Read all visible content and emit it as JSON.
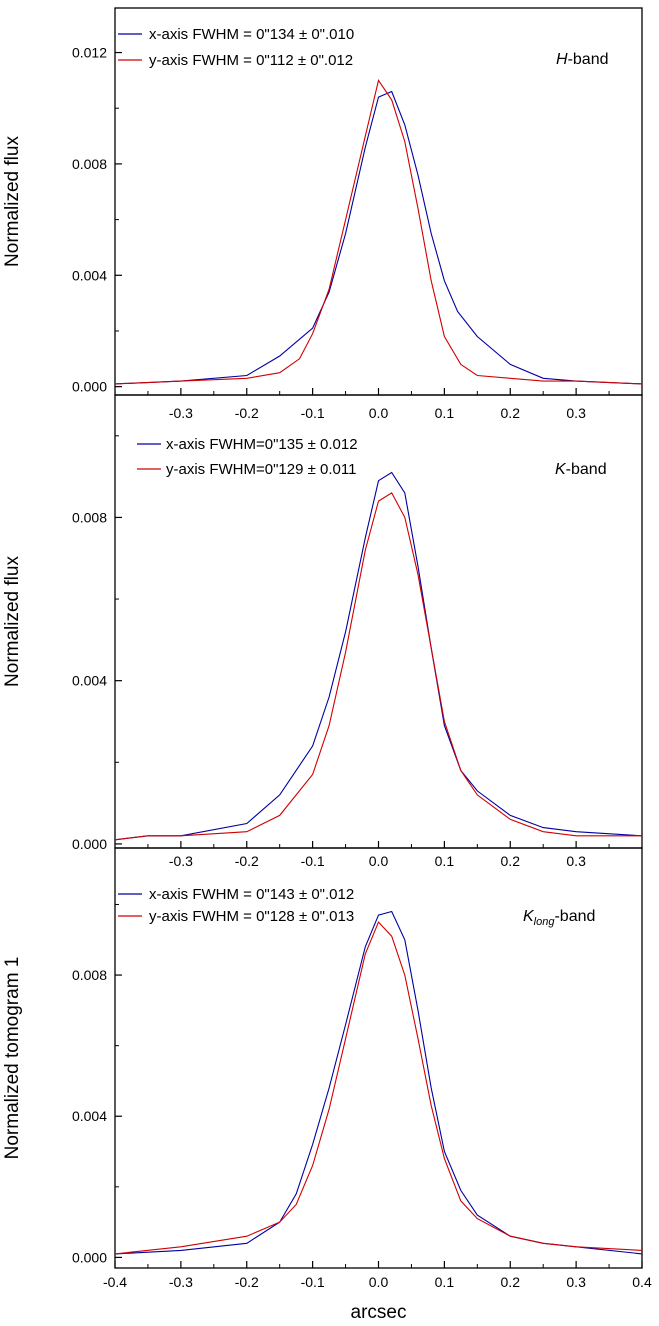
{
  "chart_data": [
    {
      "type": "line",
      "ylabel": "Normalized flux",
      "xlim": [
        -0.4,
        0.4
      ],
      "ylim": [
        -0.0003,
        0.0136
      ],
      "yticks": [
        0.0,
        0.004,
        0.008,
        0.012
      ],
      "ytick_labels": [
        "0.000",
        "0.004",
        "0.008",
        "0.012"
      ],
      "xticks": [
        -0.3,
        -0.2,
        -0.1,
        0.0,
        0.1,
        0.2,
        0.3
      ],
      "xtick_labels": [
        "-0.3",
        "-0.2",
        "-0.1",
        "0.0",
        "0.1",
        "0.2",
        "0.3"
      ],
      "band": {
        "main": "H",
        "sub": "",
        "suffix": "-band"
      },
      "series": [
        {
          "name": "x-axis",
          "color": "#0000a0",
          "label": "x-axis FWHM = 0\"134 ± 0\".010",
          "x": [
            -0.4,
            -0.3,
            -0.2,
            -0.15,
            -0.1,
            -0.075,
            -0.05,
            -0.02,
            0.0,
            0.02,
            0.04,
            0.06,
            0.08,
            0.1,
            0.12,
            0.15,
            0.2,
            0.25,
            0.3,
            0.4
          ],
          "y": [
            0.0001,
            0.0002,
            0.0004,
            0.0011,
            0.0021,
            0.0034,
            0.0055,
            0.0086,
            0.0104,
            0.0106,
            0.0094,
            0.0076,
            0.0055,
            0.0038,
            0.0027,
            0.0018,
            0.0008,
            0.0003,
            0.0002,
            0.0001
          ]
        },
        {
          "name": "y-axis",
          "color": "#d00000",
          "label": "y-axis FWHM = 0\"112 ± 0\".012",
          "x": [
            -0.4,
            -0.3,
            -0.2,
            -0.15,
            -0.12,
            -0.1,
            -0.075,
            -0.05,
            -0.02,
            0.0,
            0.02,
            0.04,
            0.06,
            0.08,
            0.1,
            0.125,
            0.15,
            0.2,
            0.25,
            0.3,
            0.4
          ],
          "y": [
            0.0001,
            0.0002,
            0.0003,
            0.0005,
            0.001,
            0.0019,
            0.0035,
            0.006,
            0.009,
            0.011,
            0.0103,
            0.0088,
            0.0064,
            0.0038,
            0.0018,
            0.0008,
            0.0004,
            0.0003,
            0.0002,
            0.0002,
            0.0001
          ]
        }
      ]
    },
    {
      "type": "line",
      "ylabel": "Normalized flux",
      "xlim": [
        -0.4,
        0.4
      ],
      "ylim": [
        -0.0001,
        0.011
      ],
      "yticks": [
        0.0,
        0.004,
        0.008
      ],
      "ytick_labels": [
        "0.000",
        "0.004",
        "0.008"
      ],
      "xticks": [
        -0.3,
        -0.2,
        -0.1,
        0.0,
        0.1,
        0.2,
        0.3
      ],
      "xtick_labels": [
        "-0.3",
        "-0.2",
        "-0.1",
        "0.0",
        "0.1",
        "0.2",
        "0.3"
      ],
      "band": {
        "main": "K",
        "sub": "",
        "suffix": "-band"
      },
      "series": [
        {
          "name": "x-axis",
          "color": "#0000a0",
          "label": "x-axis   FWHM=0\"135 ± 0.012",
          "x": [
            -0.4,
            -0.35,
            -0.3,
            -0.2,
            -0.15,
            -0.1,
            -0.075,
            -0.05,
            -0.02,
            0.0,
            0.02,
            0.04,
            0.06,
            0.08,
            0.1,
            0.125,
            0.15,
            0.2,
            0.25,
            0.3,
            0.4
          ],
          "y": [
            0.0001,
            0.0002,
            0.0002,
            0.0005,
            0.0012,
            0.0024,
            0.0036,
            0.0052,
            0.0075,
            0.0089,
            0.0091,
            0.0086,
            0.0068,
            0.0048,
            0.0029,
            0.0018,
            0.0013,
            0.0007,
            0.0004,
            0.0003,
            0.0002
          ]
        },
        {
          "name": "y-axis",
          "color": "#d00000",
          "label": "y-axis   FWHM=0\"129 ± 0.011",
          "x": [
            -0.4,
            -0.35,
            -0.3,
            -0.2,
            -0.15,
            -0.1,
            -0.075,
            -0.05,
            -0.02,
            0.0,
            0.02,
            0.04,
            0.06,
            0.08,
            0.1,
            0.125,
            0.15,
            0.2,
            0.25,
            0.3,
            0.4
          ],
          "y": [
            0.0001,
            0.0002,
            0.0002,
            0.0003,
            0.0007,
            0.0017,
            0.0029,
            0.0047,
            0.0072,
            0.0084,
            0.0086,
            0.008,
            0.0066,
            0.0048,
            0.003,
            0.0018,
            0.0012,
            0.0006,
            0.0003,
            0.0002,
            0.0002
          ]
        }
      ]
    },
    {
      "type": "line",
      "ylabel": "Normalized tomogram 1",
      "xlabel": "arcsec",
      "xlim": [
        -0.4,
        0.4
      ],
      "ylim": [
        -0.0003,
        0.0116
      ],
      "yticks": [
        0.0,
        0.004,
        0.008
      ],
      "ytick_labels": [
        "0.000",
        "0.004",
        "0.008"
      ],
      "xticks": [
        -0.4,
        -0.3,
        -0.2,
        -0.1,
        0.0,
        0.1,
        0.2,
        0.3,
        0.4
      ],
      "xtick_labels": [
        "-0.4",
        "-0.3",
        "-0.2",
        "-0.1",
        "0.0",
        "0.1",
        "0.2",
        "0.3",
        "0.4"
      ],
      "band": {
        "main": "K",
        "sub": "long",
        "suffix": "-band"
      },
      "series": [
        {
          "name": "x-axis",
          "color": "#0000a0",
          "label": "x-axis   FWHM = 0\"143 ± 0\".012",
          "x": [
            -0.4,
            -0.3,
            -0.2,
            -0.15,
            -0.125,
            -0.1,
            -0.075,
            -0.05,
            -0.02,
            0.0,
            0.02,
            0.04,
            0.06,
            0.08,
            0.1,
            0.125,
            0.15,
            0.2,
            0.25,
            0.3,
            0.4
          ],
          "y": [
            0.0001,
            0.0002,
            0.0004,
            0.001,
            0.0018,
            0.0032,
            0.0048,
            0.0066,
            0.0088,
            0.0097,
            0.0098,
            0.009,
            0.007,
            0.0048,
            0.003,
            0.0019,
            0.0012,
            0.0006,
            0.0004,
            0.0003,
            0.0001
          ]
        },
        {
          "name": "y-axis",
          "color": "#d00000",
          "label": "y-axis   FWHM = 0\"128 ± 0\".013",
          "x": [
            -0.4,
            -0.3,
            -0.2,
            -0.15,
            -0.125,
            -0.1,
            -0.075,
            -0.05,
            -0.02,
            0.0,
            0.02,
            0.04,
            0.06,
            0.08,
            0.1,
            0.125,
            0.15,
            0.2,
            0.25,
            0.3,
            0.4
          ],
          "y": [
            0.0001,
            0.0003,
            0.0006,
            0.001,
            0.0015,
            0.0026,
            0.0042,
            0.0062,
            0.0086,
            0.0095,
            0.0091,
            0.008,
            0.0062,
            0.0043,
            0.0028,
            0.0016,
            0.0011,
            0.0006,
            0.0004,
            0.0003,
            0.0002
          ]
        }
      ]
    }
  ]
}
